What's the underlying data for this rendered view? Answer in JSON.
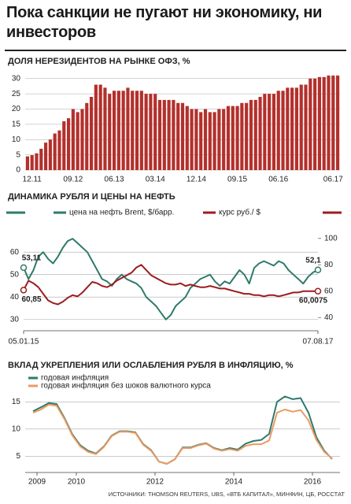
{
  "header": {
    "title": "Пока санкции не пугают ни экономику, ни инвесторов"
  },
  "chart_data": [
    {
      "type": "bar",
      "title": "ДОЛЯ НЕРЕЗИДЕНТОВ НА РЫНКЕ ОФЗ, %",
      "color": "#b3302c",
      "categories": [
        null,
        "12.11",
        null,
        null,
        null,
        null,
        null,
        null,
        null,
        null,
        "09.12",
        null,
        null,
        null,
        null,
        null,
        null,
        null,
        null,
        "06.13",
        null,
        null,
        null,
        null,
        null,
        null,
        null,
        null,
        "03.14",
        null,
        null,
        null,
        null,
        null,
        null,
        null,
        null,
        "12.14",
        null,
        null,
        null,
        null,
        null,
        null,
        null,
        null,
        "09.15",
        null,
        null,
        null,
        null,
        null,
        null,
        null,
        null,
        "06.16",
        null,
        null,
        null,
        null,
        null,
        null,
        null,
        null,
        null,
        null,
        null,
        "06.17",
        null
      ],
      "values": [
        4.5,
        4.9,
        5.5,
        7,
        9,
        10,
        12,
        13,
        16,
        17,
        20,
        19,
        20,
        22,
        24,
        28,
        28,
        27,
        25,
        26,
        26,
        26,
        27,
        26,
        26,
        26,
        25,
        25,
        25,
        23,
        23,
        23,
        23,
        22,
        22,
        21,
        20,
        20,
        19,
        20,
        19,
        19,
        20,
        20,
        21,
        21,
        21,
        22,
        22,
        23,
        23,
        24,
        25,
        25,
        25,
        26,
        26,
        27,
        27,
        27,
        28,
        28,
        30,
        30,
        30.5,
        30.5,
        31,
        31,
        31
      ],
      "ylim": [
        0,
        32
      ],
      "yticks": [
        0,
        5,
        10,
        15,
        20,
        25,
        30
      ],
      "grid": true
    },
    {
      "type": "line",
      "title": "ДИНАМИКА РУБЛЯ И ЦЕНЫ НА НЕФТЬ",
      "legend": "top",
      "categories": [
        "05.01.15",
        null,
        null,
        null,
        null,
        null,
        null,
        null,
        null,
        null,
        null,
        null,
        null,
        null,
        null,
        null,
        null,
        null,
        null,
        null,
        null,
        null,
        null,
        null,
        null,
        null,
        null,
        null,
        null,
        null,
        null,
        null,
        null,
        null,
        null,
        null,
        null,
        null,
        null,
        null,
        null,
        null,
        null,
        null,
        null,
        null,
        null,
        null,
        null,
        null,
        null,
        null,
        null,
        null,
        null,
        null,
        null,
        null,
        null,
        null,
        "07.08.17"
      ],
      "series": [
        {
          "name": "цена на нефть Brent, $/барр.",
          "color": "#2f7a6b",
          "values": [
            53.11,
            48,
            52,
            58,
            60,
            57,
            55,
            58,
            62,
            65,
            66,
            64,
            62,
            60,
            56,
            52,
            48,
            47,
            45,
            48,
            50,
            48,
            47,
            46,
            44,
            40,
            38,
            36,
            33,
            30,
            32,
            36,
            38,
            40,
            44,
            46,
            48,
            49,
            50,
            47,
            45,
            47,
            46,
            49,
            52,
            50,
            46,
            53,
            55,
            56,
            55,
            54,
            56,
            55,
            52,
            50,
            48,
            46,
            49,
            51,
            52.1
          ],
          "value_labels": [
            "53,11",
            null,
            null,
            null,
            null,
            null,
            null,
            null,
            null,
            null,
            null,
            null,
            null,
            null,
            null,
            null,
            null,
            null,
            null,
            null,
            null,
            null,
            null,
            null,
            null,
            null,
            null,
            null,
            null,
            null,
            null,
            null,
            null,
            null,
            null,
            null,
            null,
            null,
            null,
            null,
            null,
            null,
            null,
            null,
            null,
            null,
            null,
            null,
            null,
            null,
            null,
            null,
            null,
            null,
            null,
            null,
            null,
            null,
            null,
            null,
            "52,1"
          ]
        },
        {
          "name": "курс руб./ $",
          "color": "#9c1c1f",
          "axis": "y2",
          "values": [
            60.85,
            68,
            66,
            63,
            58,
            53,
            51,
            50,
            52,
            55,
            57,
            56,
            59,
            63,
            67,
            66,
            64,
            63,
            65,
            68,
            70,
            72,
            74,
            78,
            80,
            76,
            72,
            70,
            68,
            66,
            65,
            65,
            66,
            64,
            65,
            64,
            63,
            63,
            64,
            63,
            62,
            62,
            61,
            60,
            59,
            58,
            58,
            57,
            57,
            56,
            57,
            57,
            56,
            57,
            58,
            59,
            59,
            60,
            60,
            60,
            60.0075
          ],
          "value_labels": [
            "60,85",
            null,
            null,
            null,
            null,
            null,
            null,
            null,
            null,
            null,
            null,
            null,
            null,
            null,
            null,
            null,
            null,
            null,
            null,
            null,
            null,
            null,
            null,
            null,
            null,
            null,
            null,
            null,
            null,
            null,
            null,
            null,
            null,
            null,
            null,
            null,
            null,
            null,
            null,
            null,
            null,
            null,
            null,
            null,
            null,
            null,
            null,
            null,
            null,
            null,
            null,
            null,
            null,
            null,
            null,
            null,
            null,
            null,
            null,
            null,
            "60,0075"
          ]
        }
      ],
      "ylim": [
        25,
        72
      ],
      "yticks": [
        30,
        40,
        50,
        60
      ],
      "y2lim": [
        30,
        110
      ],
      "y2ticks": [
        40,
        60,
        80,
        100
      ],
      "grid": true
    },
    {
      "type": "line",
      "title": "ВКЛАД УКРЕПЛЕНИЯ ИЛИ ОСЛАБЛЕНИЯ РУБЛЯ В ИНФЛЯЦИЮ, %",
      "legend": "top-left",
      "x": [
        2008.9,
        2009.1,
        2009.3,
        2009.5,
        2009.7,
        2009.9,
        2010.1,
        2010.3,
        2010.5,
        2010.7,
        2010.9,
        2011.1,
        2011.3,
        2011.5,
        2011.7,
        2011.9,
        2012.1,
        2012.3,
        2012.5,
        2012.7,
        2012.9,
        2013.1,
        2013.3,
        2013.5,
        2013.7,
        2013.9,
        2014.1,
        2014.3,
        2014.5,
        2014.7,
        2014.9,
        2015.1,
        2015.3,
        2015.5,
        2015.7,
        2015.9,
        2016.1,
        2016.3,
        2016.5
      ],
      "series": [
        {
          "name": "годовая инфляция",
          "color": "#2f7a6b",
          "values": [
            13.3,
            14.0,
            14.8,
            14.6,
            12.0,
            9.0,
            7.0,
            6.0,
            5.5,
            6.8,
            8.8,
            9.6,
            9.6,
            9.4,
            7.2,
            6.1,
            4.0,
            3.6,
            4.4,
            6.6,
            6.6,
            7.1,
            7.4,
            6.5,
            6.1,
            6.5,
            6.2,
            7.3,
            7.8,
            8.0,
            9.1,
            15.0,
            16.0,
            15.5,
            15.7,
            13.0,
            8.5,
            6.0,
            4.5
          ]
        },
        {
          "name": "годовая инфляция без шоков валютного курса",
          "color": "#ec9a62",
          "values": [
            13.0,
            13.6,
            14.5,
            14.3,
            11.8,
            8.8,
            6.8,
            5.8,
            5.4,
            6.7,
            8.7,
            9.5,
            9.5,
            9.3,
            7.1,
            6.0,
            4.0,
            3.6,
            4.4,
            6.5,
            6.5,
            7.0,
            7.3,
            6.4,
            6.0,
            6.3,
            6.0,
            6.9,
            7.2,
            7.2,
            7.9,
            13.0,
            13.6,
            13.2,
            13.5,
            11.6,
            8.0,
            5.8,
            4.6
          ]
        }
      ],
      "xlim": [
        2008.7,
        2016.7
      ],
      "xticks": [
        2009,
        2010,
        2012,
        2014,
        2016
      ],
      "ylim": [
        2,
        16.5
      ],
      "yticks": [
        5,
        10,
        15
      ],
      "grid": true
    }
  ],
  "footer": {
    "source": "ИСТОЧНИКИ: THOMSON REUTERS, UBS, «ВТБ КАПИТАЛ», МИНФИН, ЦБ, РОССТАТ"
  }
}
